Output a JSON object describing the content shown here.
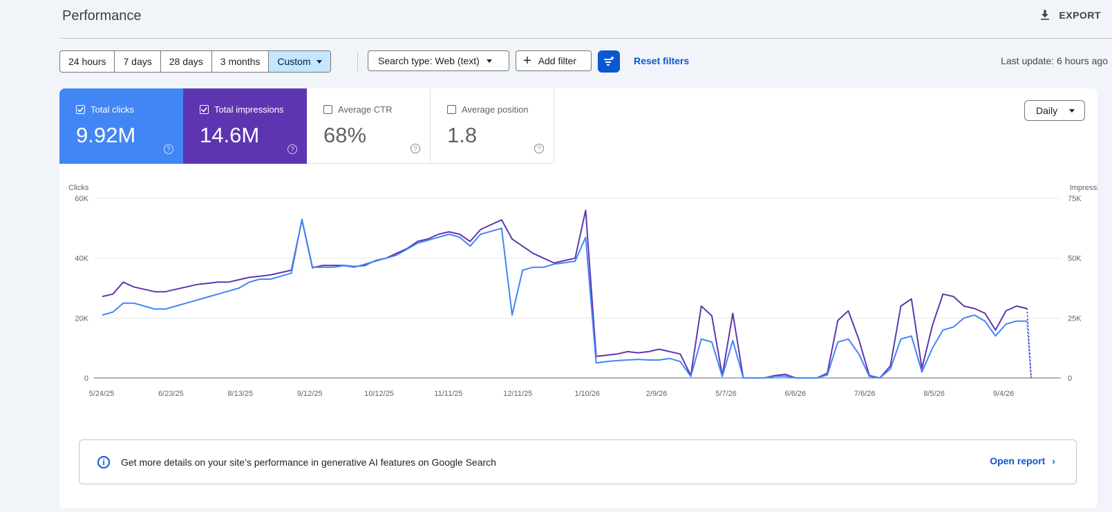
{
  "header": {
    "title": "Performance",
    "export_label": "EXPORT",
    "export_icon": "download-icon"
  },
  "filters": {
    "date_ranges": [
      {
        "label": "24 hours",
        "active": false
      },
      {
        "label": "7 days",
        "active": false
      },
      {
        "label": "28 days",
        "active": false
      },
      {
        "label": "3 months",
        "active": false
      },
      {
        "label": "Custom",
        "active": true
      }
    ],
    "search_type": "Search type: Web (text)",
    "add_filter": "Add filter",
    "reset_filters": "Reset filters",
    "last_update": "Last update: 6 hours ago"
  },
  "metrics": [
    {
      "label": "Total clicks",
      "value": "9.92M",
      "checked": true,
      "color": "#4285f4"
    },
    {
      "label": "Total impressions",
      "value": "14.6M",
      "checked": true,
      "color": "#5e35b1"
    },
    {
      "label": "Average CTR",
      "value": "68%",
      "checked": false
    },
    {
      "label": "Average position",
      "value": "1.8",
      "checked": false
    }
  ],
  "granularity": "Daily",
  "banner": {
    "message": "Get more details on your site’s performance in generative AI features on Google Search",
    "link": "Open report"
  },
  "chart_data": {
    "type": "line",
    "left_axis": {
      "label": "Clicks",
      "ticks": [
        "60K",
        "40K",
        "20K",
        "0"
      ],
      "range": [
        0,
        60000
      ]
    },
    "right_axis": {
      "label": "Impressions",
      "ticks": [
        "75K",
        "50K",
        "25K",
        "0"
      ],
      "range": [
        0,
        75000
      ]
    },
    "x_ticks": [
      "5/24/25",
      "6/23/25",
      "8/13/25",
      "9/12/25",
      "10/12/25",
      "11/11/25",
      "12/11/25",
      "1/10/26",
      "2/9/26",
      "5/7/26",
      "6/6/26",
      "7/6/26",
      "8/5/26",
      "9/4/26"
    ],
    "grid": true,
    "series": [
      {
        "name": "Total impressions",
        "color": "#5e35b1",
        "axis": "right",
        "values": [
          34000,
          35000,
          40000,
          38000,
          37000,
          36000,
          36000,
          37000,
          38000,
          39000,
          39500,
          40000,
          40000,
          41000,
          42000,
          42500,
          43000,
          44000,
          45000,
          66000,
          46000,
          47000,
          47000,
          47000,
          46500,
          47000,
          49000,
          50000,
          52000,
          54000,
          57000,
          58000,
          60000,
          61000,
          60000,
          57000,
          62000,
          64000,
          66000,
          58000,
          55000,
          52000,
          50000,
          48000,
          49000,
          50000,
          70000,
          9000,
          9500,
          10000,
          11000,
          10500,
          11000,
          12000,
          11000,
          10000,
          1000,
          30000,
          26000,
          1000,
          27000,
          0,
          0,
          0,
          1000,
          1500,
          0,
          0,
          0,
          2000,
          24000,
          28000,
          16000,
          1000,
          0,
          5000,
          30000,
          33000,
          4000,
          22000,
          35000,
          34000,
          30000,
          29000,
          27000,
          20000,
          28000,
          30000,
          29000
        ]
      },
      {
        "name": "Total clicks",
        "color": "#4285f4",
        "axis": "left",
        "values": [
          21000,
          22000,
          25000,
          25000,
          24000,
          23000,
          23000,
          24000,
          25000,
          26000,
          27000,
          28000,
          29000,
          30000,
          32000,
          33000,
          33000,
          34000,
          35000,
          53000,
          37000,
          37000,
          37000,
          37500,
          37000,
          38000,
          39000,
          40000,
          41000,
          43000,
          45000,
          46000,
          47000,
          48000,
          47000,
          44000,
          48000,
          49000,
          50000,
          21000,
          36000,
          37000,
          37000,
          38000,
          38500,
          39000,
          47000,
          5000,
          5500,
          5800,
          6000,
          6200,
          6000,
          6000,
          6500,
          5500,
          500,
          13000,
          12000,
          500,
          12500,
          0,
          0,
          0,
          500,
          600,
          0,
          0,
          0,
          1000,
          12000,
          13000,
          8000,
          500,
          0,
          3000,
          13000,
          14000,
          2000,
          10000,
          16000,
          17000,
          20000,
          21000,
          19000,
          14000,
          18000,
          19000,
          19000
        ]
      }
    ]
  }
}
